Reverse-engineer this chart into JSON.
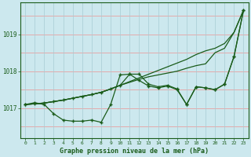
{
  "title": "Graphe pression niveau de la mer (hPa)",
  "background_color": "#cce8ee",
  "grid_color_h": "#e8a0a0",
  "grid_color_v": "#a8ccd4",
  "line_color": "#1a5c1a",
  "xlim": [
    -0.5,
    23.5
  ],
  "ylim": [
    1016.2,
    1019.85
  ],
  "xticks": [
    0,
    1,
    2,
    3,
    4,
    5,
    6,
    7,
    8,
    9,
    10,
    11,
    12,
    13,
    14,
    15,
    16,
    17,
    18,
    19,
    20,
    21,
    22,
    23
  ],
  "yticks": [
    1017,
    1018,
    1019
  ],
  "line_wavy": [
    1017.1,
    1017.15,
    1017.1,
    1016.85,
    1016.68,
    1016.65,
    1016.65,
    1016.68,
    1016.62,
    1017.1,
    1017.9,
    1017.92,
    1017.75,
    1017.6,
    1017.55,
    1017.6,
    1017.5,
    1017.1,
    1017.58,
    1017.55,
    1017.5,
    1017.65,
    1018.4,
    1019.65
  ],
  "line_smooth1": [
    1017.1,
    1017.12,
    1017.14,
    1017.18,
    1017.22,
    1017.27,
    1017.32,
    1017.37,
    1017.43,
    1017.52,
    1017.62,
    1017.72,
    1017.82,
    1017.92,
    1018.02,
    1018.12,
    1018.22,
    1018.32,
    1018.45,
    1018.55,
    1018.62,
    1018.75,
    1019.05,
    1019.65
  ],
  "line_smooth2": [
    1017.1,
    1017.12,
    1017.14,
    1017.18,
    1017.22,
    1017.27,
    1017.32,
    1017.37,
    1017.43,
    1017.52,
    1017.62,
    1017.7,
    1017.78,
    1017.85,
    1017.9,
    1017.95,
    1018.0,
    1018.08,
    1018.15,
    1018.2,
    1018.5,
    1018.62,
    1019.05,
    1019.65
  ],
  "line_medium": [
    1017.1,
    1017.12,
    1017.14,
    1017.18,
    1017.22,
    1017.27,
    1017.32,
    1017.37,
    1017.43,
    1017.52,
    1017.62,
    1017.92,
    1017.92,
    1017.65,
    1017.58,
    1017.62,
    1017.52,
    1017.1,
    1017.58,
    1017.55,
    1017.5,
    1017.65,
    1018.4,
    1019.65
  ]
}
